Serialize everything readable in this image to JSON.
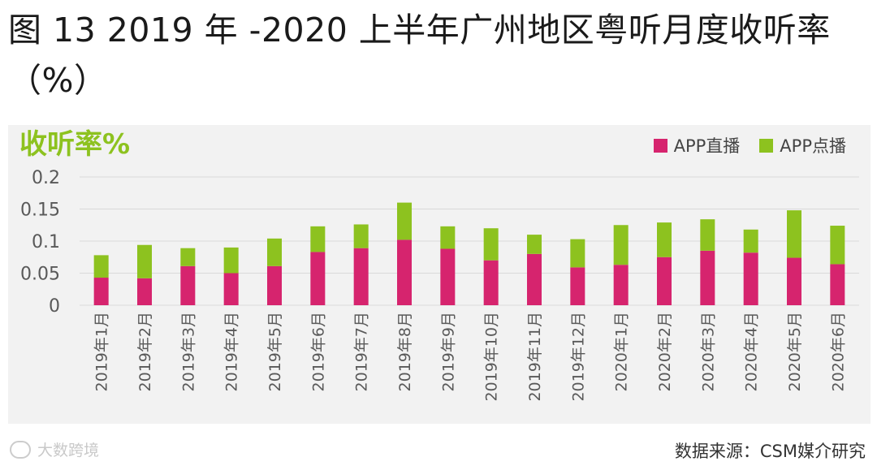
{
  "title": "图 13 2019 年 -2020 上半年广州地区粤听月度收听率（%）",
  "watermark": "大数跨境",
  "source": "数据来源：CSM媒介研究",
  "colors": {
    "live": "#d6246e",
    "on_demand": "#8dc21f",
    "accent": "#8dc21f",
    "grid": "#d9d9d9",
    "axis_text": "#595959"
  },
  "chart_data": {
    "type": "bar",
    "stacked": true,
    "title": "图 13 2019 年 -2020 上半年广州地区粤听月度收听率（%）",
    "ylabel": "收听率%",
    "xlabel": "",
    "ylim": [
      0,
      0.2
    ],
    "yticks": [
      0,
      0.05,
      0.1,
      0.15,
      0.2
    ],
    "ytick_labels": [
      "0",
      "0.05",
      "0.1",
      "0.15",
      "0.2"
    ],
    "grid": true,
    "legend_position": "top-right",
    "categories": [
      "2019年1月",
      "2019年2月",
      "2019年3月",
      "2019年4月",
      "2019年5月",
      "2019年6月",
      "2019年7月",
      "2019年8月",
      "2019年9月",
      "2019年10月",
      "2019年11月",
      "2019年12月",
      "2020年1月",
      "2020年2月",
      "2020年3月",
      "2020年4月",
      "2020年5月",
      "2020年6月"
    ],
    "series": [
      {
        "name": "APP直播",
        "values": [
          0.043,
          0.042,
          0.061,
          0.05,
          0.061,
          0.083,
          0.089,
          0.102,
          0.088,
          0.07,
          0.08,
          0.059,
          0.063,
          0.075,
          0.085,
          0.082,
          0.074,
          0.064
        ]
      },
      {
        "name": "APP点播",
        "values": [
          0.035,
          0.052,
          0.028,
          0.04,
          0.043,
          0.04,
          0.037,
          0.058,
          0.035,
          0.05,
          0.03,
          0.044,
          0.062,
          0.054,
          0.049,
          0.036,
          0.074,
          0.06
        ]
      }
    ]
  }
}
